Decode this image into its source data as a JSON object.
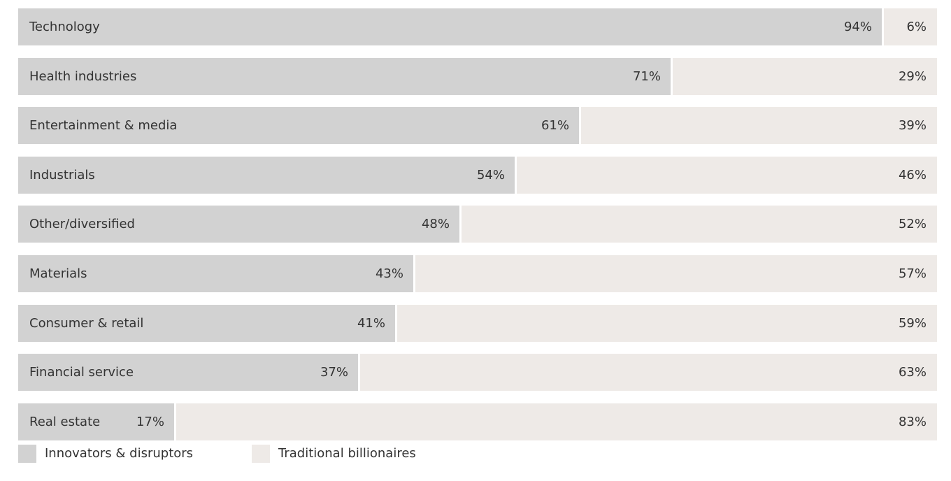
{
  "colors": {
    "innovators": "#d2d2d2",
    "traditional": "#eeeae7",
    "text": "#333333"
  },
  "chart_data": {
    "type": "bar",
    "orientation": "horizontal",
    "stacked": true,
    "normalized": true,
    "value_suffix": "%",
    "categories": [
      "Technology",
      "Health industries",
      "Entertainment & media",
      "Industrials",
      "Other/diversified",
      "Materials",
      "Consumer & retail",
      "Financial service",
      "Real estate"
    ],
    "series": [
      {
        "name": "Innovators & disruptors",
        "values": [
          94,
          71,
          61,
          54,
          48,
          43,
          41,
          37,
          17
        ]
      },
      {
        "name": "Traditional billionaires",
        "values": [
          6,
          29,
          39,
          46,
          52,
          57,
          59,
          63,
          83
        ]
      }
    ],
    "xlim": [
      0,
      100
    ],
    "grid": false,
    "legend_position": "bottom-left",
    "legend": [
      "Innovators & disruptors",
      "Traditional billionaires"
    ]
  }
}
